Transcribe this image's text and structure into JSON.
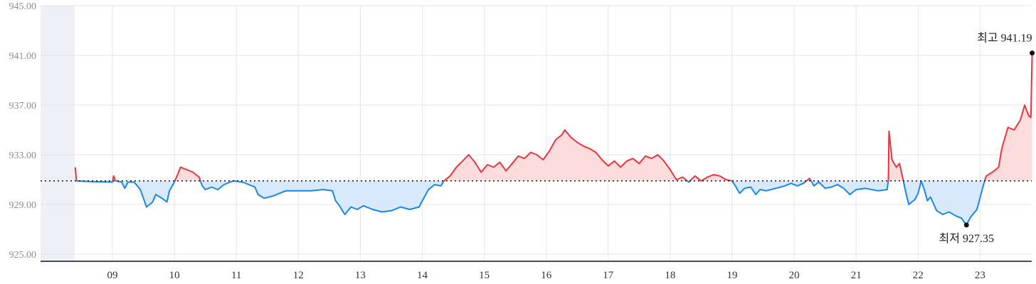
{
  "chart_data": {
    "type": "area",
    "title": "",
    "xlabel": "",
    "ylabel": "",
    "ylim": [
      925.0,
      945.0
    ],
    "yticks": [
      "925.00",
      "929.00",
      "933.00",
      "937.00",
      "941.00",
      "945.00"
    ],
    "xticks": [
      "09",
      "10",
      "11",
      "12",
      "13",
      "14",
      "15",
      "16",
      "17",
      "18",
      "19",
      "20",
      "21",
      "22",
      "23"
    ],
    "baseline": 930.9,
    "grid": true,
    "colors": {
      "up": "#e8343c",
      "down": "#1a86e6",
      "up_fill": "#fcdcdd",
      "down_fill": "#d8e9fb",
      "off_hours": "#eef0f6"
    },
    "series": [
      {
        "values": [
          [
            8.4,
            932.0
          ],
          [
            8.42,
            930.9
          ],
          [
            8.6,
            930.85
          ],
          [
            9.0,
            930.8
          ],
          [
            9.02,
            931.3
          ],
          [
            9.05,
            930.9
          ],
          [
            9.15,
            930.8
          ],
          [
            9.2,
            930.3
          ],
          [
            9.25,
            930.8
          ],
          [
            9.35,
            930.8
          ],
          [
            9.45,
            930.2
          ],
          [
            9.5,
            929.5
          ],
          [
            9.55,
            928.8
          ],
          [
            9.65,
            929.2
          ],
          [
            9.7,
            929.8
          ],
          [
            9.8,
            929.5
          ],
          [
            9.88,
            929.2
          ],
          [
            9.92,
            930.1
          ],
          [
            10.0,
            930.8
          ],
          [
            10.05,
            931.4
          ],
          [
            10.1,
            932.0
          ],
          [
            10.2,
            931.8
          ],
          [
            10.3,
            931.6
          ],
          [
            10.4,
            931.2
          ],
          [
            10.45,
            930.5
          ],
          [
            10.5,
            930.2
          ],
          [
            10.6,
            930.4
          ],
          [
            10.7,
            930.2
          ],
          [
            10.8,
            930.6
          ],
          [
            10.95,
            930.9
          ],
          [
            11.1,
            930.8
          ],
          [
            11.2,
            930.6
          ],
          [
            11.3,
            930.4
          ],
          [
            11.35,
            929.8
          ],
          [
            11.45,
            929.5
          ],
          [
            11.6,
            929.7
          ],
          [
            11.8,
            930.1
          ],
          [
            12.0,
            930.1
          ],
          [
            12.2,
            930.1
          ],
          [
            12.4,
            930.2
          ],
          [
            12.55,
            930.1
          ],
          [
            12.6,
            929.3
          ],
          [
            12.65,
            929.0
          ],
          [
            12.75,
            928.2
          ],
          [
            12.85,
            928.8
          ],
          [
            12.95,
            928.6
          ],
          [
            13.05,
            928.9
          ],
          [
            13.2,
            928.6
          ],
          [
            13.35,
            928.4
          ],
          [
            13.5,
            928.5
          ],
          [
            13.65,
            928.8
          ],
          [
            13.8,
            928.6
          ],
          [
            13.95,
            928.8
          ],
          [
            14.0,
            929.3
          ],
          [
            14.1,
            930.2
          ],
          [
            14.2,
            930.6
          ],
          [
            14.3,
            930.5
          ],
          [
            14.35,
            930.9
          ],
          [
            14.45,
            931.3
          ],
          [
            14.55,
            932.0
          ],
          [
            14.65,
            932.5
          ],
          [
            14.75,
            933.0
          ],
          [
            14.85,
            932.4
          ],
          [
            14.95,
            931.6
          ],
          [
            15.05,
            932.2
          ],
          [
            15.15,
            932.0
          ],
          [
            15.25,
            932.4
          ],
          [
            15.35,
            931.7
          ],
          [
            15.45,
            932.3
          ],
          [
            15.55,
            932.9
          ],
          [
            15.65,
            932.7
          ],
          [
            15.75,
            933.2
          ],
          [
            15.85,
            933.0
          ],
          [
            15.95,
            932.6
          ],
          [
            16.05,
            933.3
          ],
          [
            16.15,
            934.2
          ],
          [
            16.25,
            934.6
          ],
          [
            16.3,
            935.0
          ],
          [
            16.4,
            934.4
          ],
          [
            16.5,
            934.0
          ],
          [
            16.6,
            933.7
          ],
          [
            16.7,
            933.5
          ],
          [
            16.8,
            933.2
          ],
          [
            16.9,
            932.6
          ],
          [
            17.0,
            932.1
          ],
          [
            17.1,
            932.5
          ],
          [
            17.2,
            932.0
          ],
          [
            17.3,
            932.5
          ],
          [
            17.4,
            932.7
          ],
          [
            17.5,
            932.3
          ],
          [
            17.6,
            932.9
          ],
          [
            17.7,
            932.7
          ],
          [
            17.8,
            933.0
          ],
          [
            17.9,
            932.5
          ],
          [
            18.0,
            931.8
          ],
          [
            18.1,
            931.0
          ],
          [
            18.2,
            931.2
          ],
          [
            18.3,
            930.8
          ],
          [
            18.4,
            931.3
          ],
          [
            18.5,
            930.9
          ],
          [
            18.6,
            931.2
          ],
          [
            18.7,
            931.4
          ],
          [
            18.8,
            931.3
          ],
          [
            18.9,
            931.0
          ],
          [
            19.0,
            930.9
          ],
          [
            19.05,
            930.5
          ],
          [
            19.12,
            929.9
          ],
          [
            19.2,
            930.3
          ],
          [
            19.3,
            930.4
          ],
          [
            19.38,
            929.8
          ],
          [
            19.45,
            930.2
          ],
          [
            19.55,
            930.1
          ],
          [
            19.7,
            930.3
          ],
          [
            19.85,
            930.5
          ],
          [
            19.95,
            930.7
          ],
          [
            20.05,
            930.5
          ],
          [
            20.15,
            930.7
          ],
          [
            20.25,
            931.1
          ],
          [
            20.32,
            930.5
          ],
          [
            20.4,
            930.8
          ],
          [
            20.5,
            930.3
          ],
          [
            20.6,
            930.4
          ],
          [
            20.7,
            930.6
          ],
          [
            20.8,
            930.3
          ],
          [
            20.9,
            929.8
          ],
          [
            21.0,
            930.2
          ],
          [
            21.15,
            930.3
          ],
          [
            21.35,
            930.1
          ],
          [
            21.5,
            930.2
          ],
          [
            21.52,
            930.95
          ],
          [
            21.53,
            934.9
          ],
          [
            21.58,
            932.6
          ],
          [
            21.65,
            932.0
          ],
          [
            21.7,
            932.3
          ],
          [
            21.75,
            931.2
          ],
          [
            21.8,
            930.0
          ],
          [
            21.85,
            929.0
          ],
          [
            21.95,
            929.4
          ],
          [
            22.0,
            929.9
          ],
          [
            22.05,
            930.9
          ],
          [
            22.1,
            930.2
          ],
          [
            22.15,
            929.3
          ],
          [
            22.2,
            929.6
          ],
          [
            22.3,
            928.5
          ],
          [
            22.4,
            928.2
          ],
          [
            22.5,
            928.4
          ],
          [
            22.6,
            928.1
          ],
          [
            22.7,
            927.9
          ],
          [
            22.78,
            927.35
          ],
          [
            22.85,
            928.0
          ],
          [
            22.95,
            928.6
          ],
          [
            23.05,
            930.5
          ],
          [
            23.1,
            931.3
          ],
          [
            23.2,
            931.6
          ],
          [
            23.3,
            932.0
          ],
          [
            23.35,
            933.5
          ],
          [
            23.45,
            935.2
          ],
          [
            23.55,
            935.0
          ],
          [
            23.65,
            935.8
          ],
          [
            23.72,
            937.0
          ],
          [
            23.78,
            936.2
          ],
          [
            23.82,
            936.0
          ],
          [
            23.84,
            941.19
          ]
        ]
      }
    ],
    "annotations": {
      "high_label": "최고 941.19",
      "low_label": "최저 927.35",
      "high": {
        "x": 23.84,
        "y": 941.19
      },
      "low": {
        "x": 22.78,
        "y": 927.35
      }
    }
  }
}
